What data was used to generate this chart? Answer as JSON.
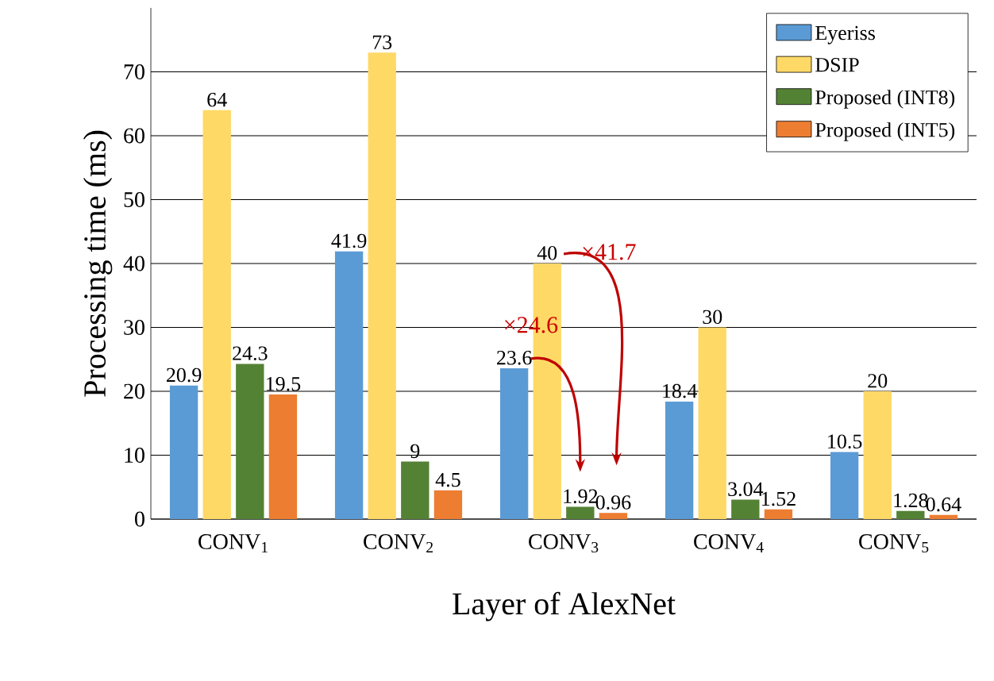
{
  "chart_data": {
    "type": "bar",
    "xlabel": "Layer of AlexNet",
    "ylabel": "Processing time (ms)",
    "categories": [
      "CONV$_{1}$",
      "CONV$_{2}$",
      "CONV$_{3}$",
      "CONV$_{4}$",
      "CONV$_{5}$"
    ],
    "series": [
      {
        "name": "Eyeriss",
        "color": "#5b9bd5",
        "values": [
          20.9,
          41.9,
          23.6,
          18.4,
          10.5
        ]
      },
      {
        "name": "DSIP",
        "color": "#ffd966",
        "values": [
          64,
          73,
          40,
          30,
          20
        ]
      },
      {
        "name": "Proposed (INT8)",
        "color": "#548235",
        "values": [
          24.3,
          9,
          1.92,
          3.04,
          1.28
        ]
      },
      {
        "name": "Proposed (INT5)",
        "color": "#ed7d31",
        "values": [
          19.5,
          4.5,
          0.96,
          1.52,
          0.64
        ]
      }
    ],
    "ylim": [
      0,
      80
    ],
    "yticks": [
      0,
      10,
      20,
      30,
      40,
      50,
      60,
      70
    ],
    "grid": "y",
    "legend": "top right",
    "data_labels": true,
    "annotations": [
      {
        "text": "×41.7",
        "x": "CONV$_{3}$",
        "y": 40
      },
      {
        "text": "×24.6",
        "x": "CONV$_{3}$",
        "y": 23.6
      }
    ]
  }
}
